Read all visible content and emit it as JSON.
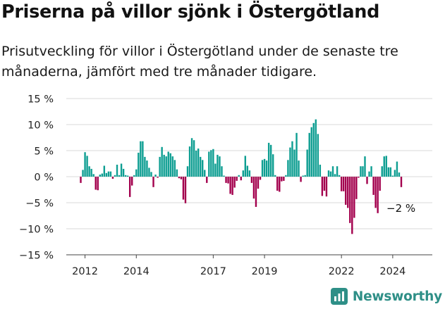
{
  "title": "Priserna på villor sjönk i Östergötland",
  "subtitle": "Prisutveckling för villor i Östergötland under de senaste tre månaderna, jämfört med tre månader tidigare.",
  "brand": {
    "name": "Newsworthy",
    "logo_icon": "newsworthy-chart-logo-icon"
  },
  "colors": {
    "positive": "#0e9e92",
    "negative": "#a3004d",
    "grid": "#d9d9d9",
    "brand": "#2e8f87"
  },
  "chart_data": {
    "type": "bar",
    "x_unit": "month",
    "series_start": "2011-11",
    "ylim": [
      -15,
      15
    ],
    "y_ticks": [
      15,
      10,
      5,
      0,
      -5,
      -10,
      -15
    ],
    "y_tick_labels": [
      "15 %",
      "10 %",
      "5 %",
      "0 %",
      "−5 %",
      "−10 %",
      "−15 %"
    ],
    "x_ticks": [
      {
        "label": "2012",
        "date": "2012-01"
      },
      {
        "label": "2014",
        "date": "2014-01"
      },
      {
        "label": "2017",
        "date": "2017-01"
      },
      {
        "label": "2019",
        "date": "2019-01"
      },
      {
        "label": "2022",
        "date": "2022-01"
      },
      {
        "label": "2024",
        "date": "2024-01"
      }
    ],
    "grid": true,
    "values": [
      -1.2,
      1.3,
      4.7,
      4.0,
      2.0,
      1.5,
      0.5,
      -2.5,
      -2.6,
      0.4,
      0.6,
      2.1,
      0.7,
      1.0,
      1.0,
      -0.4,
      0.3,
      2.3,
      0.3,
      2.5,
      1.5,
      0.3,
      0.2,
      -3.9,
      -1.7,
      0.3,
      1.4,
      4.6,
      6.8,
      6.8,
      3.8,
      3.1,
      1.7,
      0.9,
      -2.0,
      0.4,
      -0.2,
      3.8,
      5.7,
      4.2,
      3.9,
      4.8,
      4.5,
      3.9,
      3.2,
      1.4,
      -0.3,
      -0.5,
      -4.4,
      -5.1,
      2.0,
      5.8,
      7.4,
      7.0,
      5.0,
      5.4,
      3.8,
      3.2,
      1.3,
      -1.2,
      4.8,
      5.1,
      5.3,
      2.5,
      4.2,
      3.9,
      2.0,
      0.2,
      -1.2,
      -1.3,
      -3.3,
      -3.5,
      -2.1,
      -0.8,
      0.3,
      -0.7,
      1.2,
      4.0,
      2.1,
      1.2,
      -1.2,
      -4.2,
      -5.8,
      -2.3,
      -0.6,
      3.2,
      3.4,
      3.1,
      6.5,
      6.1,
      4.3,
      0.3,
      -2.7,
      -2.9,
      -0.9,
      -0.8,
      0.3,
      3.2,
      5.6,
      6.8,
      5.2,
      8.4,
      3.1,
      -1.0,
      0.2,
      0.3,
      5.2,
      8.4,
      9.5,
      10.3,
      11.0,
      8.2,
      2.3,
      -3.7,
      -2.7,
      -3.8,
      1.2,
      1.0,
      2.0,
      0.5,
      2.0,
      0.3,
      -2.8,
      -2.8,
      -5.4,
      -6.0,
      -8.9,
      -11.0,
      -7.9,
      -4.3,
      -0.2,
      2.0,
      2.0,
      3.9,
      -1.4,
      1.0,
      2.0,
      -3.5,
      -6.0,
      -7.0,
      -2.7,
      2.0,
      3.9,
      4.0,
      1.8,
      1.8,
      0.2,
      1.3,
      2.9,
      0.8,
      -2.0
    ],
    "annotations": [
      {
        "text": "−2 %",
        "target": "last"
      }
    ]
  }
}
